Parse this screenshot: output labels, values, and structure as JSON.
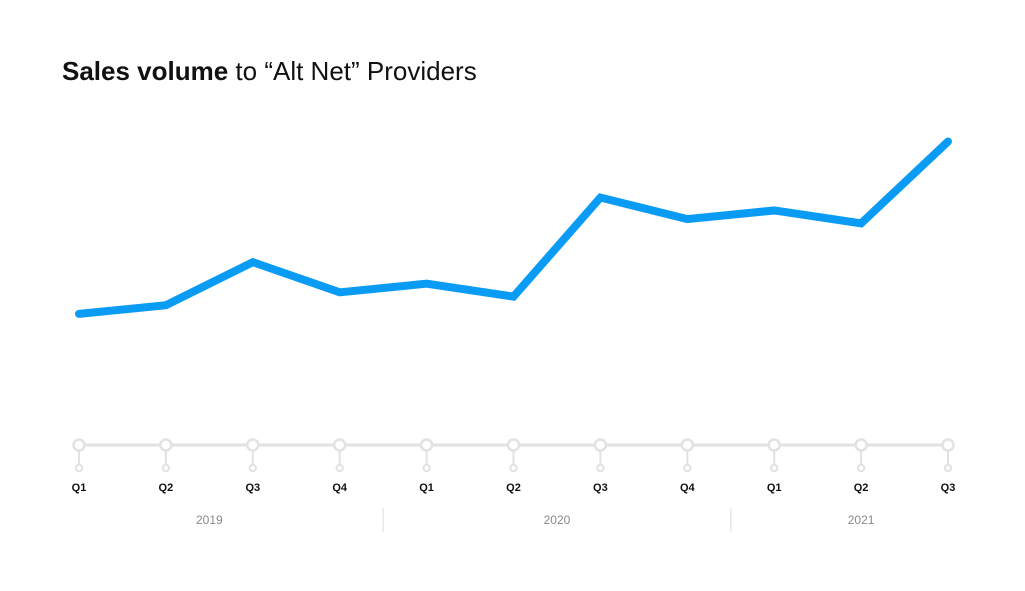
{
  "title": {
    "bold": "Sales volume",
    "rest": " to “Alt Net” Providers"
  },
  "colors": {
    "line": "#0a9cf5",
    "axis": "#e2e2e2",
    "tick_text": "#111111",
    "year_text": "#8a8a8a"
  },
  "chart_data": {
    "type": "line",
    "title": "Sales volume to “Alt Net” Providers",
    "categories": [
      "Q1",
      "Q2",
      "Q3",
      "Q4",
      "Q1",
      "Q2",
      "Q3",
      "Q4",
      "Q1",
      "Q2",
      "Q3"
    ],
    "years": [
      {
        "label": "2019",
        "quarters": 4
      },
      {
        "label": "2020",
        "quarters": 4
      },
      {
        "label": "2021",
        "quarters": 3
      }
    ],
    "series": [
      {
        "values": [
          20,
          22,
          32,
          25,
          27,
          24,
          47,
          42,
          44,
          41,
          60
        ]
      }
    ],
    "ylim": [
      0,
      65
    ],
    "xlabel": "",
    "ylabel": "",
    "grid": false,
    "y_axis_shown": false
  }
}
